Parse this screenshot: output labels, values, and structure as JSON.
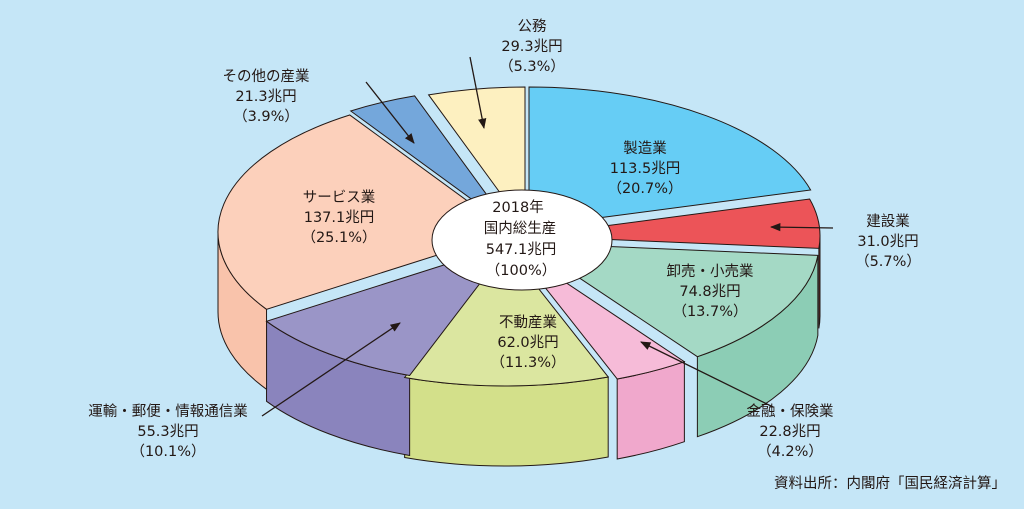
{
  "chart_data": {
    "type": "pie",
    "style": "3d-exploded-ellipse",
    "colors_matter": true,
    "center_label": [
      "2018年",
      "国内総生産",
      "547.1兆円",
      "（100%）"
    ],
    "source": "資料出所：内閣府「国民経済計算」",
    "slices": [
      {
        "name": "製造業",
        "value": 113.5,
        "value_text": "113.5兆円",
        "percent": 20.7,
        "percent_text": "（20.7%）",
        "color": "#66cdf5",
        "side": "#3fa3d4"
      },
      {
        "name": "建設業",
        "value": 31.0,
        "value_text": "31.0兆円",
        "percent": 5.7,
        "percent_text": "（5.7%）",
        "color": "#ec5458",
        "side": "#c9363c"
      },
      {
        "name": "卸売・小売業",
        "value": 74.8,
        "value_text": "74.8兆円",
        "percent": 13.7,
        "percent_text": "（13.7%）",
        "color": "#a4d9c5",
        "side": "#8ccdb5"
      },
      {
        "name": "金融・保険業",
        "value": 22.8,
        "value_text": "22.8兆円",
        "percent": 4.2,
        "percent_text": "（4.2%）",
        "color": "#f6bbd8",
        "side": "#f0a8cc"
      },
      {
        "name": "不動産業",
        "value": 62.0,
        "value_text": "62.0兆円",
        "percent": 11.3,
        "percent_text": "（11.3%）",
        "color": "#dbe6a0",
        "side": "#d3e08a"
      },
      {
        "name": "運輸・郵便・情報通信業",
        "value": 55.3,
        "value_text": "55.3兆円",
        "percent": 10.1,
        "percent_text": "（10.1%）",
        "color": "#9a95c7",
        "side": "#8a84bd"
      },
      {
        "name": "サービス業",
        "value": 137.1,
        "value_text": "137.1兆円",
        "percent": 25.1,
        "percent_text": "（25.1%）",
        "color": "#fcd0bb",
        "side": "#f9c3ab"
      },
      {
        "name": "その他の産業",
        "value": 21.3,
        "value_text": "21.3兆円",
        "percent": 3.9,
        "percent_text": "（3.9%）",
        "color": "#74a7db",
        "side": "#5b8fc6"
      },
      {
        "name": "公務",
        "value": 29.3,
        "value_text": "29.3兆円",
        "percent": 5.3,
        "percent_text": "（5.3%）",
        "color": "#fdf0c0",
        "side": "#f5e4a8"
      }
    ]
  }
}
